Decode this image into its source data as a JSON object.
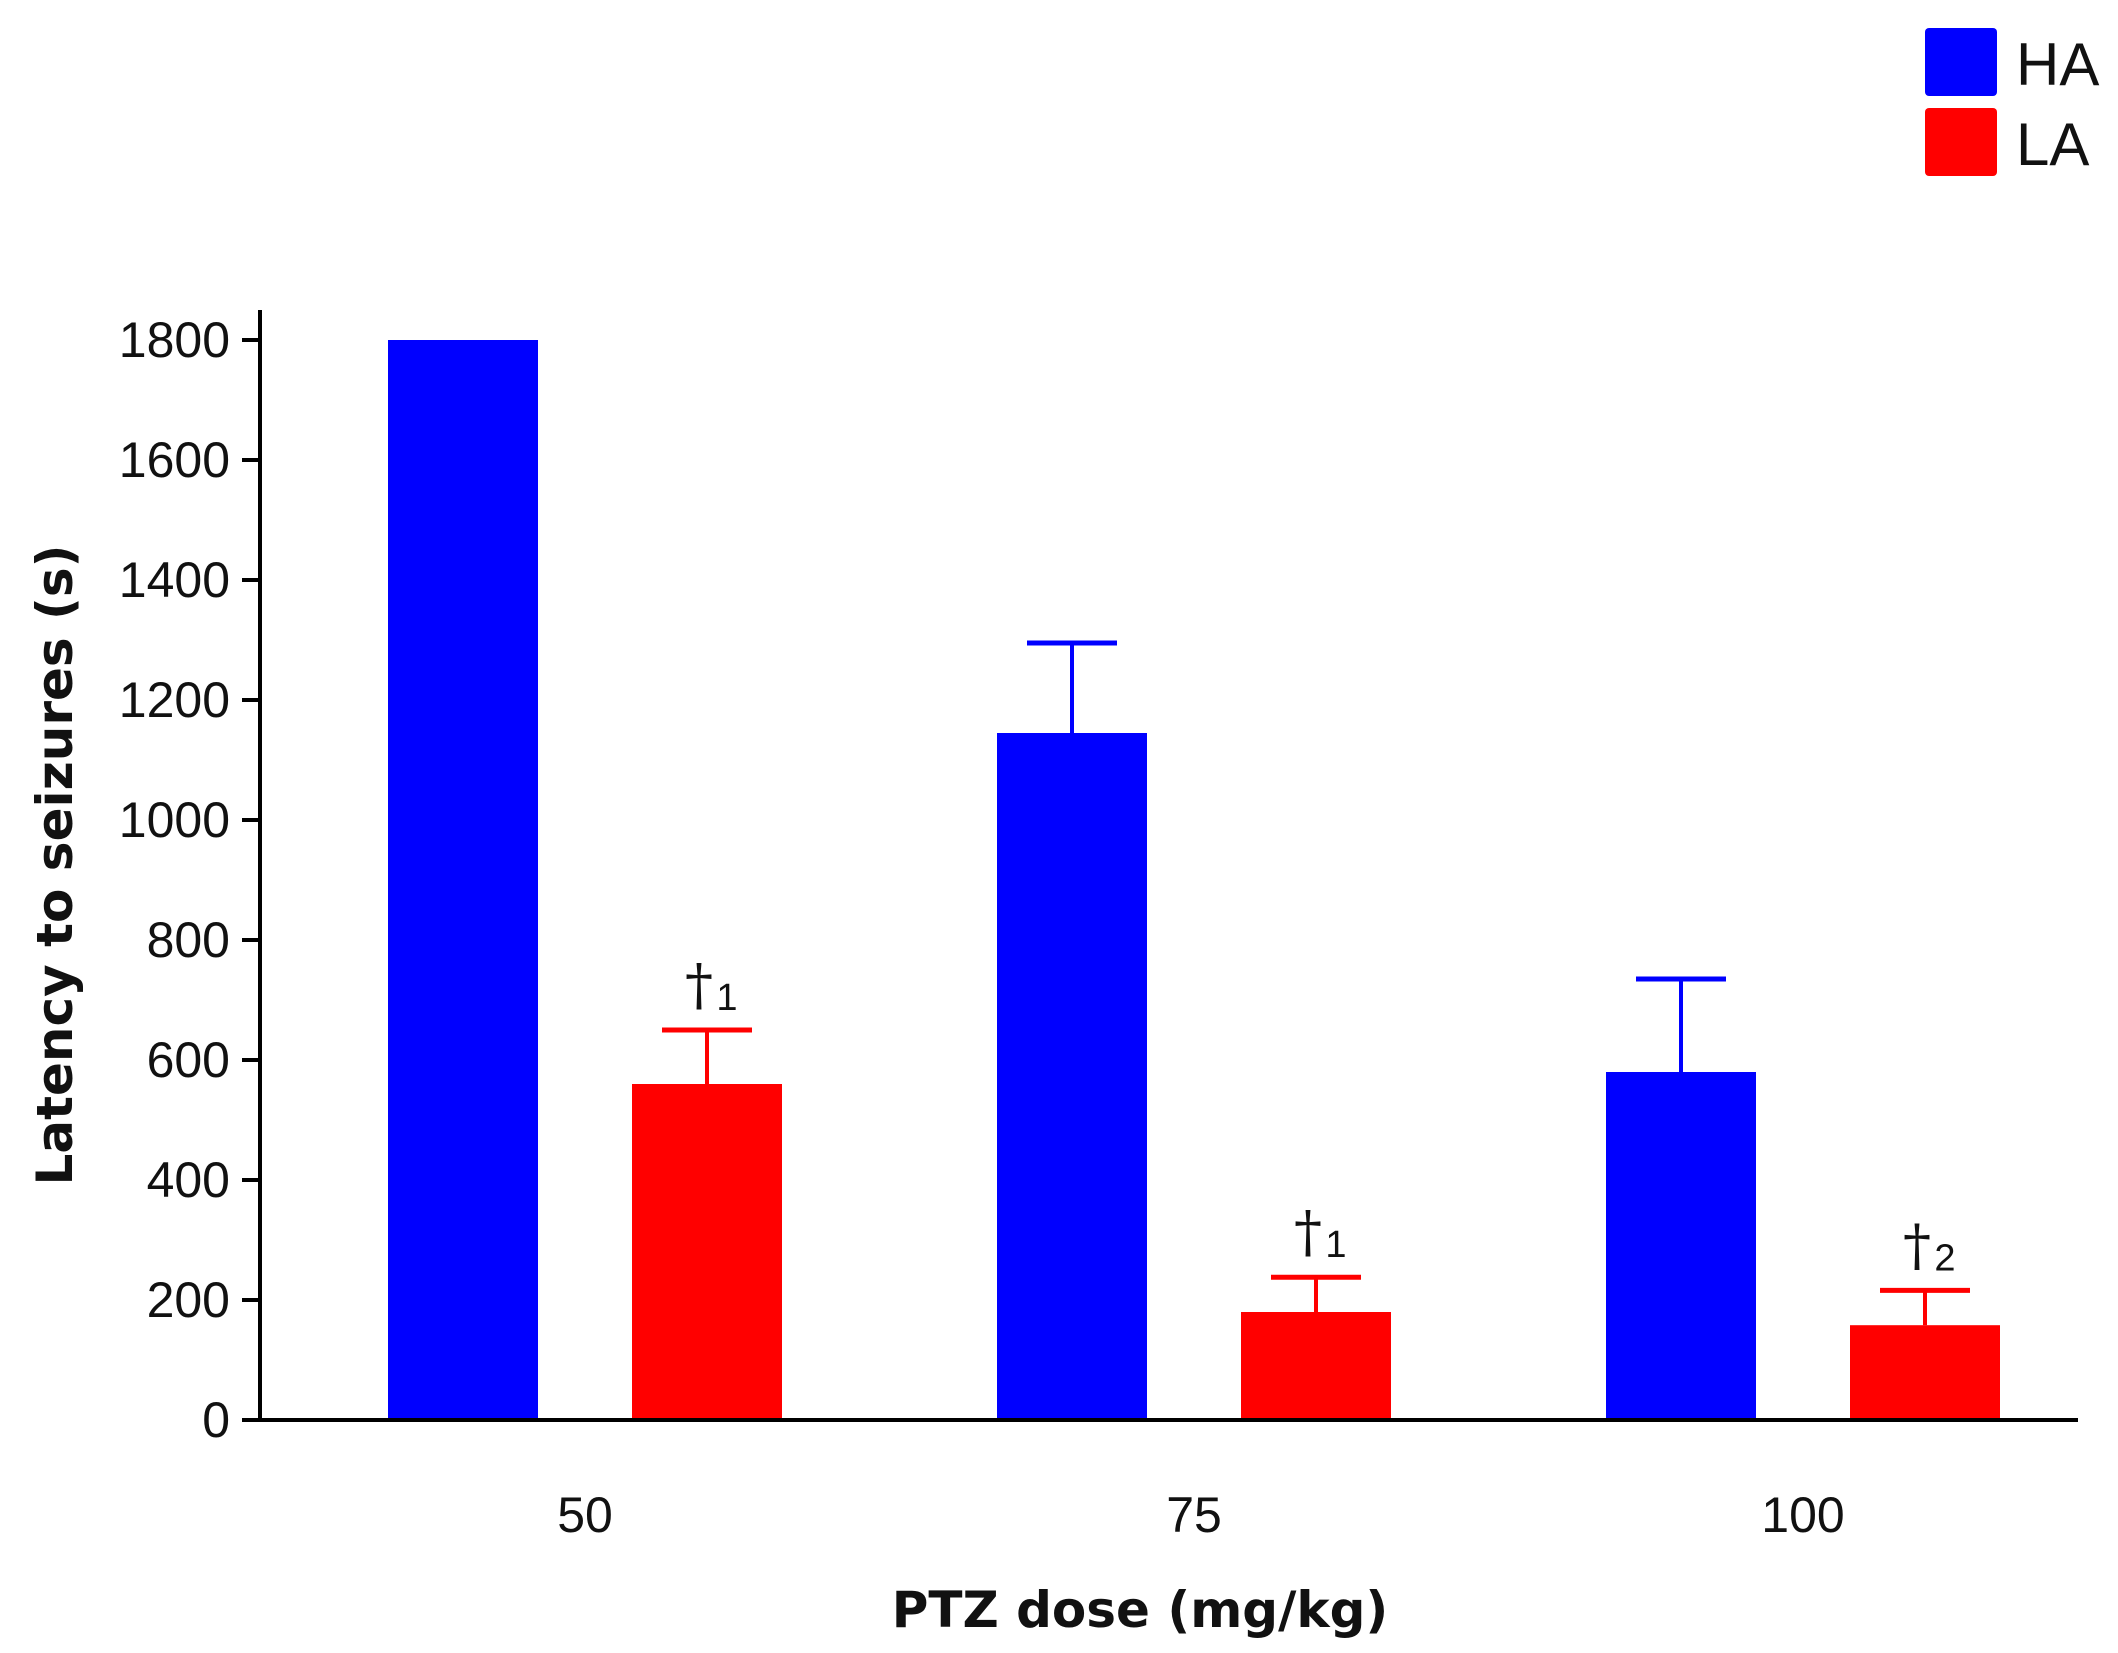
{
  "chart_data": {
    "type": "bar",
    "title": "",
    "xlabel": "PTZ dose (mg/kg)",
    "ylabel": "Latency to seizures (s)",
    "categories": [
      "50",
      "75",
      "100"
    ],
    "ylim": [
      0,
      1800
    ],
    "yticks": [
      0,
      200,
      400,
      600,
      800,
      1000,
      1200,
      1400,
      1600,
      1800
    ],
    "series": [
      {
        "name": "HA",
        "color": "#0000ff",
        "values": [
          1800,
          1145,
          580
        ],
        "errors": [
          0,
          150,
          155
        ]
      },
      {
        "name": "LA",
        "color": "#ff0000",
        "values": [
          560,
          180,
          158
        ],
        "errors": [
          90,
          58,
          58
        ]
      }
    ],
    "annotations": [
      {
        "series": "LA",
        "category": "50",
        "symbol": "†",
        "sub": "1"
      },
      {
        "series": "LA",
        "category": "75",
        "symbol": "†",
        "sub": "1"
      },
      {
        "series": "LA",
        "category": "100",
        "symbol": "†",
        "sub": "2"
      }
    ],
    "legend_position": "top-right",
    "grid": false
  }
}
